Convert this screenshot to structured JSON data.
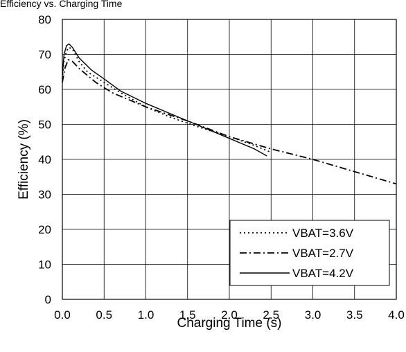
{
  "chart_data": {
    "type": "line",
    "title": "Efficiency vs. Charging Time",
    "xlabel": "Charging Time (s)",
    "ylabel": "Efficiency (%)",
    "xlim": [
      0,
      4.0
    ],
    "ylim": [
      0,
      80
    ],
    "x_ticks": [
      "0.0",
      "0.5",
      "1.0",
      "1.5",
      "2.0",
      "2.5",
      "3.0",
      "3.5",
      "4.0"
    ],
    "y_ticks": [
      "0",
      "10",
      "20",
      "30",
      "40",
      "50",
      "60",
      "70",
      "80"
    ],
    "grid": true,
    "legend_position": "bottom-right",
    "series": [
      {
        "name": "VBAT=3.6V",
        "style": "dotted",
        "points": [
          [
            0.0,
            63
          ],
          [
            0.02,
            68
          ],
          [
            0.05,
            71
          ],
          [
            0.08,
            72
          ],
          [
            0.12,
            71.5
          ],
          [
            0.2,
            68
          ],
          [
            0.3,
            65
          ],
          [
            0.5,
            62
          ],
          [
            0.7,
            59
          ],
          [
            1.0,
            55
          ],
          [
            1.3,
            52
          ],
          [
            1.6,
            49.5
          ],
          [
            2.0,
            46.5
          ],
          [
            2.3,
            44
          ],
          [
            2.5,
            42
          ]
        ]
      },
      {
        "name": "VBAT=2.7V",
        "style": "dashdot",
        "points": [
          [
            0.0,
            62
          ],
          [
            0.03,
            66
          ],
          [
            0.07,
            68.5
          ],
          [
            0.12,
            68
          ],
          [
            0.2,
            66
          ],
          [
            0.4,
            62
          ],
          [
            0.6,
            59
          ],
          [
            1.0,
            55
          ],
          [
            1.5,
            51
          ],
          [
            2.0,
            46.5
          ],
          [
            2.5,
            43
          ],
          [
            3.0,
            40
          ],
          [
            3.5,
            36.5
          ],
          [
            4.0,
            33
          ]
        ]
      },
      {
        "name": "VBAT=4.2V",
        "style": "solid",
        "points": [
          [
            0.0,
            64
          ],
          [
            0.02,
            70
          ],
          [
            0.05,
            72.5
          ],
          [
            0.08,
            73
          ],
          [
            0.12,
            72
          ],
          [
            0.2,
            69
          ],
          [
            0.35,
            65.5
          ],
          [
            0.5,
            63
          ],
          [
            0.7,
            59.5
          ],
          [
            1.0,
            56
          ],
          [
            1.3,
            53
          ],
          [
            1.6,
            50
          ],
          [
            2.0,
            46
          ],
          [
            2.3,
            43
          ],
          [
            2.45,
            41
          ]
        ]
      }
    ]
  }
}
